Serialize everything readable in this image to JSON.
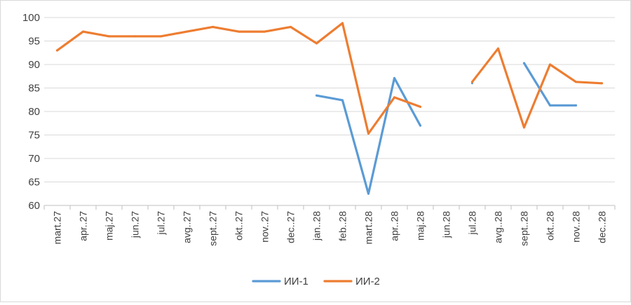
{
  "chart_data": {
    "type": "line",
    "title": "",
    "xlabel": "",
    "ylabel": "",
    "ylim": [
      60,
      100
    ],
    "yticks": [
      60,
      65,
      70,
      75,
      80,
      85,
      90,
      95,
      100
    ],
    "grid": "horizontal",
    "legend_position": "bottom",
    "categories": [
      "mart.27",
      "apr..27",
      "maj.27",
      "jun.27",
      "jul.27",
      "avg..27",
      "sept..27",
      "okt..27",
      "nov..27",
      "dec..27",
      "jan..28",
      "feb..28",
      "mart.28",
      "apr..28",
      "maj.28",
      "jun.28",
      "jul.28",
      "avg..28",
      "sept..28",
      "okt..28",
      "nov..28",
      "dec..28"
    ],
    "series": [
      {
        "name": "ИИ-1",
        "color": "#5b9bd5",
        "values": [
          null,
          null,
          null,
          null,
          null,
          null,
          null,
          null,
          null,
          null,
          83.4,
          82.4,
          62.5,
          87.1,
          77.0,
          null,
          86.0,
          null,
          90.3,
          81.3,
          81.3,
          null
        ]
      },
      {
        "name": "ИИ-2",
        "color": "#ed7d31",
        "values": [
          93.0,
          97.0,
          96.0,
          96.0,
          96.0,
          97.0,
          98.0,
          97.0,
          97.0,
          98.0,
          94.5,
          98.8,
          75.3,
          83.0,
          81.0,
          null,
          86.3,
          93.4,
          76.6,
          90.0,
          86.3,
          86.0
        ]
      }
    ]
  }
}
